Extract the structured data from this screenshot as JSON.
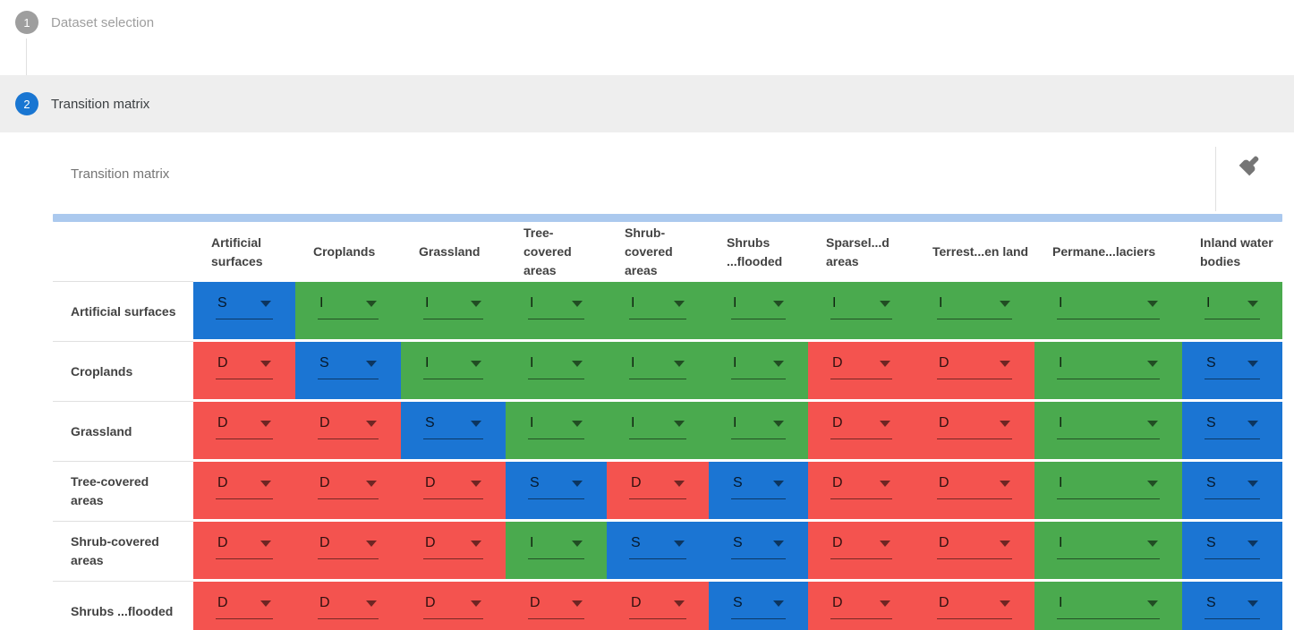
{
  "stepper": {
    "steps": [
      {
        "number": "1",
        "label": "Dataset selection",
        "state": "inactive"
      },
      {
        "number": "2",
        "label": "Transition matrix",
        "state": "active"
      }
    ]
  },
  "panel": {
    "title": "Transition matrix",
    "clear_icon": "broom-icon"
  },
  "matrix": {
    "columns": [
      "Artificial surfaces",
      "Croplands",
      "Grassland",
      "Tree-covered areas",
      "Shrub-covered areas",
      "Shrubs ...flooded",
      "Sparsel...d areas",
      "Terrest...en land",
      "Permane...laciers",
      "Inland water bodies"
    ],
    "rows": [
      {
        "label": "Artificial surfaces",
        "cells": [
          "S",
          "I",
          "I",
          "I",
          "I",
          "I",
          "I",
          "I",
          "I",
          "I"
        ]
      },
      {
        "label": "Croplands",
        "cells": [
          "D",
          "S",
          "I",
          "I",
          "I",
          "I",
          "D",
          "D",
          "I",
          "S"
        ]
      },
      {
        "label": "Grassland",
        "cells": [
          "D",
          "D",
          "S",
          "I",
          "I",
          "I",
          "D",
          "D",
          "I",
          "S"
        ]
      },
      {
        "label": "Tree-covered areas",
        "cells": [
          "D",
          "D",
          "D",
          "S",
          "D",
          "S",
          "D",
          "D",
          "I",
          "S"
        ]
      },
      {
        "label": "Shrub-covered areas",
        "cells": [
          "D",
          "D",
          "D",
          "I",
          "S",
          "S",
          "D",
          "D",
          "I",
          "S"
        ]
      },
      {
        "label": "Shrubs ...flooded",
        "cells": [
          "D",
          "D",
          "D",
          "D",
          "D",
          "S",
          "D",
          "D",
          "I",
          "S"
        ]
      }
    ],
    "cell_colors": {
      "S": "#1B75D3",
      "I": "#4AAA4E",
      "D": "#F4534F"
    },
    "dropdown_icon": "dropdown-arrow-icon"
  },
  "colors": {
    "active_step": "#1976D2",
    "inactive_step": "#9E9E9E",
    "step_band": "#EEEEEE",
    "scrollbar": "#ABC9EE"
  }
}
